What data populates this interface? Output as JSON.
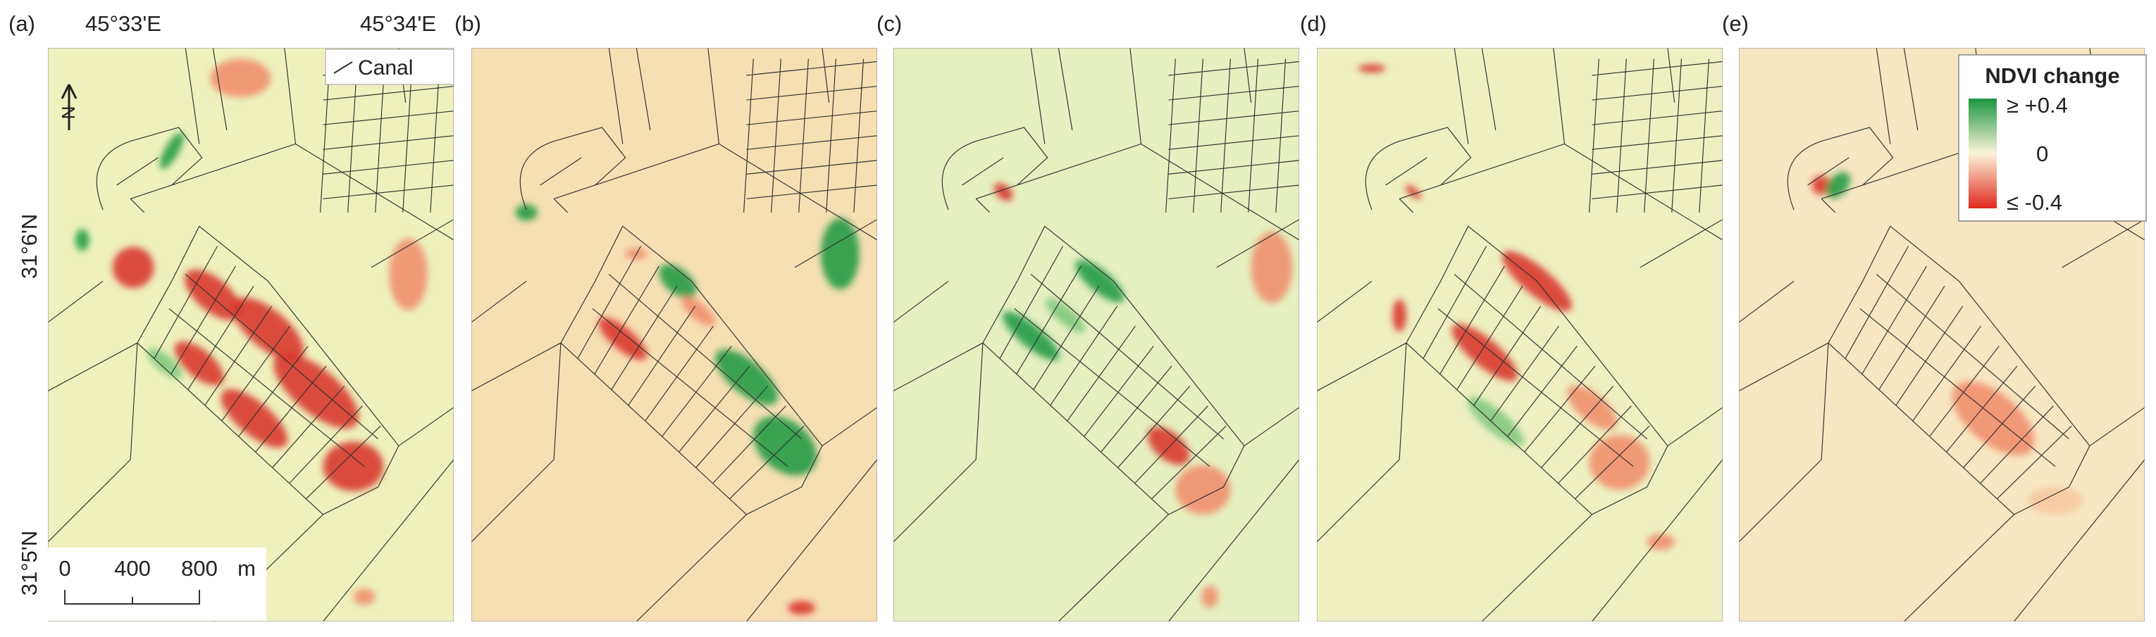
{
  "panels": [
    {
      "label": "(a)"
    },
    {
      "label": "(b)"
    },
    {
      "label": "(c)"
    },
    {
      "label": "(d)"
    },
    {
      "label": "(e)"
    }
  ],
  "axes": {
    "longitude": [
      "45°33'E",
      "45°34'E"
    ],
    "latitude": [
      "31°6'N",
      "31°5'N"
    ]
  },
  "north_arrow": "N",
  "canal_legend": "Canal",
  "scale_bar": {
    "ticks": [
      0,
      400,
      800
    ],
    "unit": "m"
  },
  "ndvi_legend": {
    "title": "NDVI change",
    "labels": [
      "≥ +0.4",
      "0",
      "≤ -0.4"
    ]
  }
}
